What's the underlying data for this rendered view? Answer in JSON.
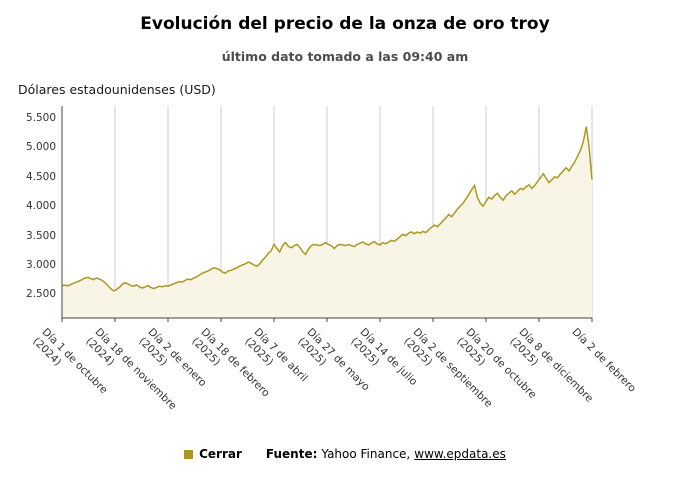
{
  "chart_data": {
    "type": "area",
    "title": "Evolución del precio de la onza de oro troy",
    "subtitle": "último dato tomado a las 09:40 am",
    "ylabel": "Dólares estadounidenses (USD)",
    "xlabel": "",
    "grid": "vertical-only",
    "legend_position": "bottom",
    "ylim": [
      2100,
      5700
    ],
    "colors": {
      "line": "#AB9820",
      "fill": "#F8F4E6",
      "grid": "#CCCCCC",
      "axis": "#444444"
    },
    "y_ticks": [
      {
        "value": 2500,
        "label": "2.500"
      },
      {
        "value": 3000,
        "label": "3.000"
      },
      {
        "value": 3500,
        "label": "3.500"
      },
      {
        "value": 4000,
        "label": "4.000"
      },
      {
        "value": 4500,
        "label": "4.500"
      },
      {
        "value": 5000,
        "label": "5.000"
      },
      {
        "value": 5500,
        "label": "5.500"
      }
    ],
    "x_ticks": [
      {
        "label": "Día 1 de octubre",
        "year": "(2024)"
      },
      {
        "label": "Día 18 de noviembre",
        "year": "(2024)"
      },
      {
        "label": "Día 2 de enero",
        "year": "(2025)"
      },
      {
        "label": "Día 18 de febrero",
        "year": "(2025)"
      },
      {
        "label": "Día 7 de abril",
        "year": "(2025)"
      },
      {
        "label": "Día 27 de mayo",
        "year": "(2025)"
      },
      {
        "label": "Día 14 de julio",
        "year": "(2025)"
      },
      {
        "label": "Día 2 de septiembre",
        "year": "(2025)"
      },
      {
        "label": "Día 20 de octubre",
        "year": "(2025)"
      },
      {
        "label": "Día 8 de diciembre",
        "year": "(2025)"
      },
      {
        "label": "Día 2 de febrero",
        "year": ""
      }
    ],
    "series": [
      {
        "name": "Cerrar",
        "values": [
          2650,
          2660,
          2645,
          2670,
          2690,
          2710,
          2730,
          2750,
          2780,
          2790,
          2770,
          2750,
          2780,
          2760,
          2740,
          2700,
          2650,
          2600,
          2560,
          2580,
          2620,
          2670,
          2700,
          2680,
          2650,
          2640,
          2660,
          2630,
          2610,
          2630,
          2650,
          2620,
          2600,
          2620,
          2640,
          2630,
          2650,
          2640,
          2660,
          2680,
          2700,
          2720,
          2710,
          2740,
          2760,
          2750,
          2780,
          2800,
          2830,
          2860,
          2880,
          2900,
          2930,
          2950,
          2940,
          2920,
          2880,
          2860,
          2900,
          2910,
          2930,
          2950,
          2980,
          3000,
          3020,
          3050,
          3030,
          3000,
          2980,
          3020,
          3080,
          3130,
          3200,
          3240,
          3350,
          3280,
          3220,
          3330,
          3380,
          3320,
          3290,
          3330,
          3350,
          3300,
          3230,
          3180,
          3270,
          3330,
          3350,
          3340,
          3330,
          3350,
          3380,
          3350,
          3330,
          3280,
          3330,
          3350,
          3340,
          3330,
          3350,
          3330,
          3310,
          3350,
          3370,
          3390,
          3360,
          3340,
          3370,
          3400,
          3360,
          3340,
          3380,
          3360,
          3390,
          3420,
          3400,
          3440,
          3480,
          3520,
          3500,
          3540,
          3560,
          3530,
          3560,
          3540,
          3570,
          3550,
          3600,
          3640,
          3680,
          3650,
          3700,
          3750,
          3800,
          3860,
          3820,
          3880,
          3950,
          4000,
          4050,
          4120,
          4200,
          4280,
          4350,
          4150,
          4050,
          4000,
          4080,
          4150,
          4120,
          4180,
          4220,
          4150,
          4100,
          4180,
          4220,
          4260,
          4200,
          4250,
          4300,
          4280,
          4330,
          4360,
          4300,
          4350,
          4420,
          4480,
          4550,
          4470,
          4400,
          4450,
          4500,
          4480,
          4550,
          4600,
          4650,
          4600,
          4680,
          4750,
          4850,
          4950,
          5100,
          5350,
          5000,
          4450
        ]
      }
    ],
    "source": {
      "prefix": "Fuente:",
      "name": "Yahoo Finance,",
      "link": "www.epdata.es"
    }
  }
}
